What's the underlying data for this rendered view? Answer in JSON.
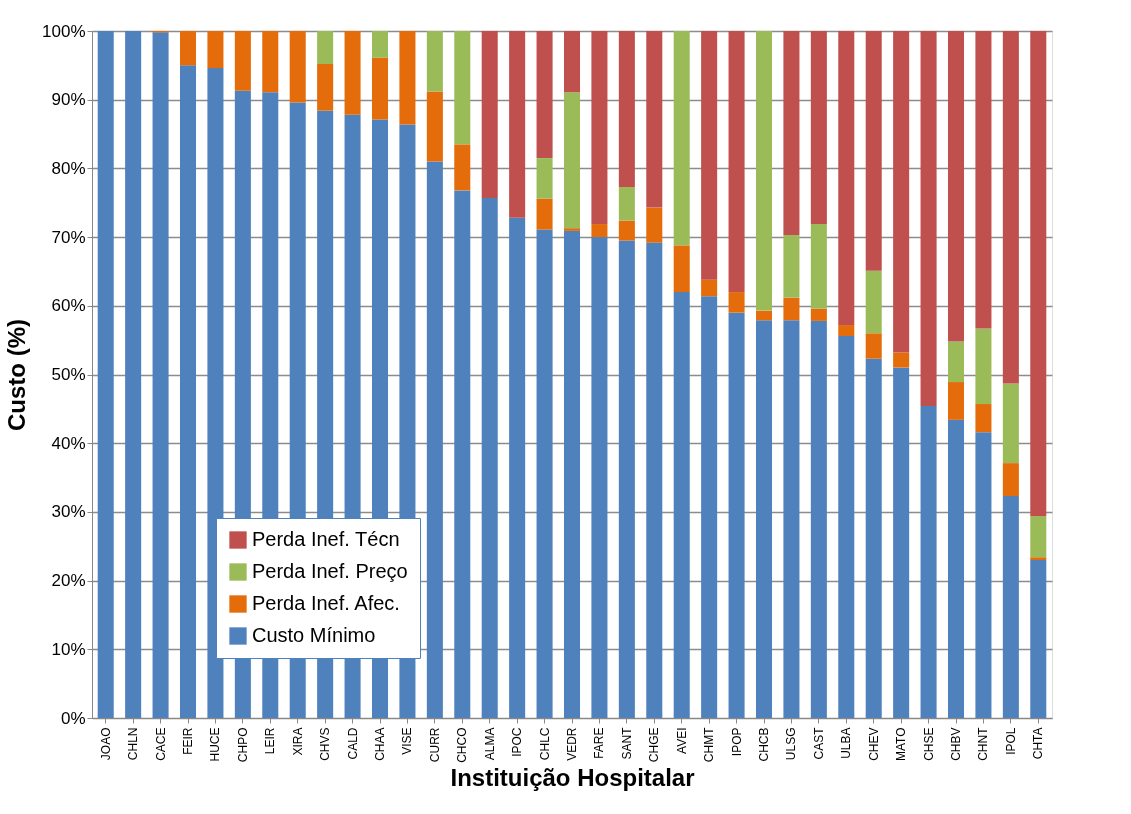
{
  "chart_data": {
    "type": "bar",
    "stacked": true,
    "xlabel": "Instituição Hospitalar",
    "ylabel": "Custo (%)",
    "categories": [
      "JOAO",
      "CHLN",
      "CACE",
      "FEIR",
      "HUCE",
      "CHPO",
      "LEIR",
      "XIRA",
      "CHVS",
      "CALD",
      "CHAA",
      "VISE",
      "CURR",
      "CHCO",
      "ALMA",
      "IPOC",
      "CHLC",
      "VEDR",
      "FARE",
      "SANT",
      "CHGE",
      "AVEI",
      "CHMT",
      "IPOP",
      "CHCB",
      "ULSG",
      "CAST",
      "ULBA",
      "CHEV",
      "MATO",
      "CHSE",
      "CHBV",
      "CHNT",
      "IPOL",
      "CHTA"
    ],
    "series": [
      {
        "name": "Custo Mínimo",
        "color": "#4f81bd",
        "values": [
          100,
          100,
          99.8,
          95,
          94.6,
          91.3,
          91.1,
          89.6,
          88.4,
          87.8,
          87.1,
          86.4,
          81.0,
          76.8,
          75.7,
          72.8,
          71.1,
          70.9,
          70.0,
          69.5,
          69.2,
          62.0,
          61.4,
          59.0,
          57.9,
          57.9,
          57.8,
          55.6,
          52.3,
          51.0,
          45.4,
          43.4,
          41.6,
          32.3,
          23.0
        ]
      },
      {
        "name": "Perda Inef. Afec.",
        "color": "#e46c0a",
        "values": [
          0,
          0,
          0.2,
          5,
          5.4,
          8.7,
          8.9,
          10.4,
          6.8,
          12.2,
          9.0,
          13.6,
          10.2,
          6.7,
          0,
          0,
          4.5,
          0.4,
          1.9,
          2.9,
          5.1,
          6.8,
          2.4,
          3.0,
          1.4,
          3.3,
          1.8,
          1.6,
          3.7,
          2.2,
          0,
          5.5,
          4.1,
          4.8,
          0.4
        ]
      },
      {
        "name": "Perda Inef. Preço",
        "color": "#9bbb59",
        "values": [
          0,
          0,
          0,
          0,
          0,
          0,
          0,
          0,
          4.8,
          0,
          3.9,
          0,
          8.8,
          16.5,
          0,
          0,
          5.9,
          19.8,
          0,
          4.9,
          0,
          31.2,
          0,
          0,
          40.7,
          9.1,
          12.3,
          0,
          9.1,
          0,
          0,
          5.9,
          11.0,
          11.6,
          6.0
        ]
      },
      {
        "name": "Perda Inef. Técn",
        "color": "#c0504d",
        "values": [
          0,
          0,
          0,
          0,
          0,
          0,
          0,
          0,
          0,
          0,
          0,
          0,
          0,
          0,
          24.3,
          27.2,
          18.5,
          8.9,
          28.1,
          22.7,
          25.7,
          0,
          36.2,
          38.0,
          0,
          29.7,
          28.1,
          42.8,
          34.9,
          46.8,
          54.6,
          45.2,
          43.3,
          51.3,
          70.6
        ]
      }
    ],
    "ylim": [
      0,
      100
    ],
    "yticks": [
      {
        "value": 0,
        "label": "0%"
      },
      {
        "value": 10,
        "label": "10%"
      },
      {
        "value": 20,
        "label": "20%"
      },
      {
        "value": 30,
        "label": "30%"
      },
      {
        "value": 40,
        "label": "40%"
      },
      {
        "value": 50,
        "label": "50%"
      },
      {
        "value": 60,
        "label": "60%"
      },
      {
        "value": 70,
        "label": "70%"
      },
      {
        "value": 80,
        "label": "80%"
      },
      {
        "value": 90,
        "label": "90%"
      },
      {
        "value": 100,
        "label": "100%"
      }
    ],
    "grid": "y",
    "legend": "bottom left"
  }
}
